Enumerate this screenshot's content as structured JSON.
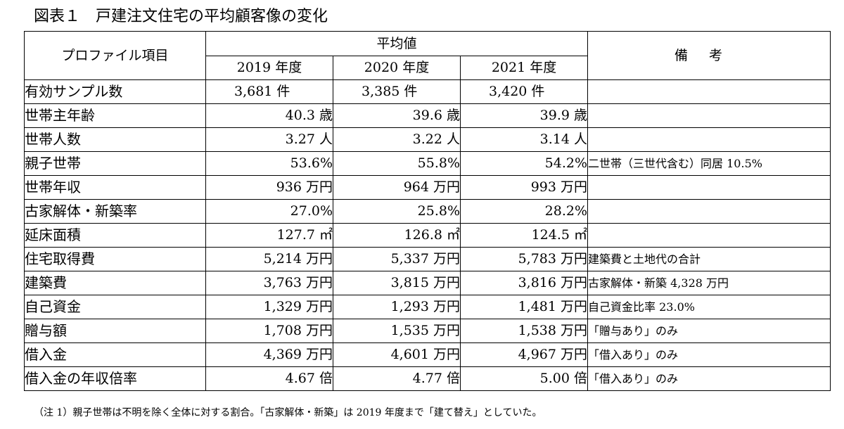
{
  "title": "図表１　戸建注文住宅の平均顧客像の変化",
  "header": {
    "profile": "プロファイル項目",
    "average": "平均値",
    "remarks": "備考",
    "years": [
      "2019 年度",
      "2020 年度",
      "2021 年度"
    ]
  },
  "rows": [
    {
      "label": "有効サンプル数",
      "values": [
        "3,681 件",
        "3,385 件",
        "3,420 件"
      ],
      "remark": ""
    },
    {
      "label": "世帯主年齢",
      "values": [
        "40.3 歳",
        "39.6 歳",
        "39.9 歳"
      ],
      "remark": ""
    },
    {
      "label": "世帯人数",
      "values": [
        "3.27 人",
        "3.22 人",
        "3.14 人"
      ],
      "remark": ""
    },
    {
      "label": "親子世帯",
      "values": [
        "53.6%",
        "55.8%",
        "54.2%"
      ],
      "remark": "二世帯（三世代含む）同居 10.5%"
    },
    {
      "label": "世帯年収",
      "values": [
        "936 万円",
        "964 万円",
        "993 万円"
      ],
      "remark": ""
    },
    {
      "label": "古家解体・新築率",
      "values": [
        "27.0%",
        "25.8%",
        "28.2%"
      ],
      "remark": ""
    },
    {
      "label": "延床面積",
      "values": [
        "127.7 ㎡",
        "126.8 ㎡",
        "124.5 ㎡"
      ],
      "remark": ""
    },
    {
      "label": "住宅取得費",
      "values": [
        "5,214 万円",
        "5,337 万円",
        "5,783 万円"
      ],
      "remark": "建築費と土地代の合計"
    },
    {
      "label": "建築費",
      "values": [
        "3,763 万円",
        "3,815 万円",
        "3,816 万円"
      ],
      "remark": "古家解体・新築 4,328 万円"
    },
    {
      "label": "自己資金",
      "values": [
        "1,329 万円",
        "1,293 万円",
        "1,481 万円"
      ],
      "remark": "自己資金比率 23.0%"
    },
    {
      "label": "贈与額",
      "values": [
        "1,708 万円",
        "1,535 万円",
        "1,538 万円"
      ],
      "remark": "「贈与あり」のみ"
    },
    {
      "label": "借入金",
      "values": [
        "4,369 万円",
        "4,601 万円",
        "4,967 万円"
      ],
      "remark": "「借入あり」のみ"
    },
    {
      "label": "借入金の年収倍率",
      "values": [
        "4.67 倍",
        "4.77 倍",
        "5.00 倍"
      ],
      "remark": "「借入あり」のみ"
    }
  ],
  "note": "（注 1）親子世帯は不明を除く全体に対する割合。「古家解体・新築」は 2019 年度まで「建て替え」としていた。"
}
